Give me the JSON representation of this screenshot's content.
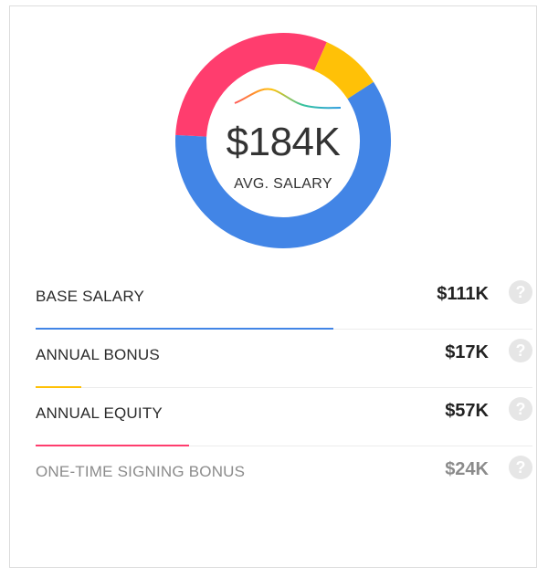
{
  "summary": {
    "total": "$184K",
    "label": "AVG. SALARY"
  },
  "colors": {
    "base": "#4285e6",
    "bonus": "#ffc107",
    "equity": "#ff3d6e",
    "spark": [
      "#ff5a5a",
      "#ffc107",
      "#34c3a0",
      "#2d9be0"
    ]
  },
  "items": [
    {
      "label": "BASE SALARY",
      "value": "$111K",
      "amount": 111,
      "color": "#4285e6",
      "help": "?"
    },
    {
      "label": "ANNUAL BONUS",
      "value": "$17K",
      "amount": 17,
      "color": "#ffc107",
      "help": "?"
    },
    {
      "label": "ANNUAL EQUITY",
      "value": "$57K",
      "amount": 57,
      "color": "#ff3d6e",
      "help": "?"
    },
    {
      "label": "ONE-TIME SIGNING BONUS",
      "value": "$24K",
      "amount": 24,
      "color": "",
      "help": "?"
    }
  ]
}
